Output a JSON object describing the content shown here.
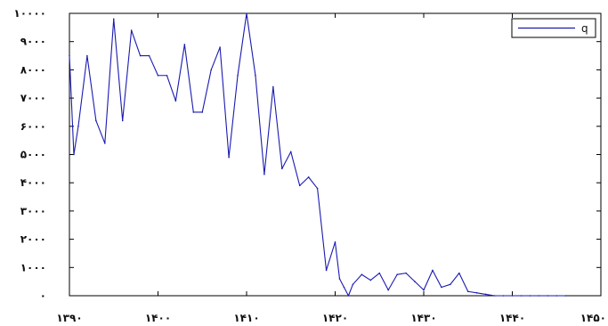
{
  "chart_data": {
    "type": "line",
    "x": [
      1390,
      1390.5,
      1391,
      1392,
      1393,
      1394,
      1395,
      1396,
      1397,
      1398,
      1399,
      1400,
      1401,
      1402,
      1403,
      1404,
      1405,
      1406,
      1407,
      1408,
      1409,
      1410,
      1411,
      1412,
      1413,
      1414,
      1415,
      1416,
      1417,
      1418,
      1419,
      1420,
      1420.5,
      1421,
      1421.5,
      1422,
      1423,
      1424,
      1425,
      1426,
      1427,
      1428,
      1429,
      1430,
      1431,
      1432,
      1433,
      1434,
      1435,
      1436,
      1437,
      1438,
      1439,
      1440,
      1441,
      1442,
      1443,
      1444,
      1445,
      1446
    ],
    "series": [
      {
        "name": "q",
        "color": "#1a1ab0",
        "values": [
          8500,
          5000,
          6000,
          8500,
          6200,
          5400,
          9800,
          6200,
          9400,
          8500,
          8500,
          7800,
          7800,
          6900,
          8900,
          6500,
          6500,
          8000,
          8800,
          4900,
          7800,
          10000,
          7800,
          4300,
          7400,
          4500,
          5100,
          3900,
          4200,
          3800,
          900,
          1900,
          600,
          300,
          0,
          400,
          750,
          550,
          800,
          200,
          750,
          800,
          500,
          200,
          900,
          300,
          400,
          800,
          150,
          100,
          50,
          0,
          0,
          0,
          0,
          0,
          0,
          0,
          0,
          0
        ]
      }
    ],
    "x_ticks": [
      {
        "value": 1390,
        "label": "۱۳۹۰"
      },
      {
        "value": 1400,
        "label": "۱۴۰۰"
      },
      {
        "value": 1410,
        "label": "۱۴۱۰"
      },
      {
        "value": 1420,
        "label": "۱۴۲۰"
      },
      {
        "value": 1430,
        "label": "۱۴۳۰"
      },
      {
        "value": 1440,
        "label": "۱۴۴۰"
      },
      {
        "value": 1450,
        "label": "۱۴۵۰"
      }
    ],
    "y_ticks": [
      {
        "value": 0,
        "label": "۰"
      },
      {
        "value": 1000,
        "label": "۱۰۰۰"
      },
      {
        "value": 2000,
        "label": "۲۰۰۰"
      },
      {
        "value": 3000,
        "label": "۳۰۰۰"
      },
      {
        "value": 4000,
        "label": "۴۰۰۰"
      },
      {
        "value": 5000,
        "label": "۵۰۰۰"
      },
      {
        "value": 6000,
        "label": "۶۰۰۰"
      },
      {
        "value": 7000,
        "label": "۷۰۰۰"
      },
      {
        "value": 8000,
        "label": "۸۰۰۰"
      },
      {
        "value": 9000,
        "label": "۹۰۰۰"
      },
      {
        "value": 10000,
        "label": "۱۰۰۰۰"
      }
    ],
    "xlim": [
      1390,
      1450
    ],
    "ylim": [
      0,
      10000
    ],
    "title": "",
    "xlabel": "",
    "ylabel": "",
    "grid": false,
    "legend_position": "top-right"
  }
}
